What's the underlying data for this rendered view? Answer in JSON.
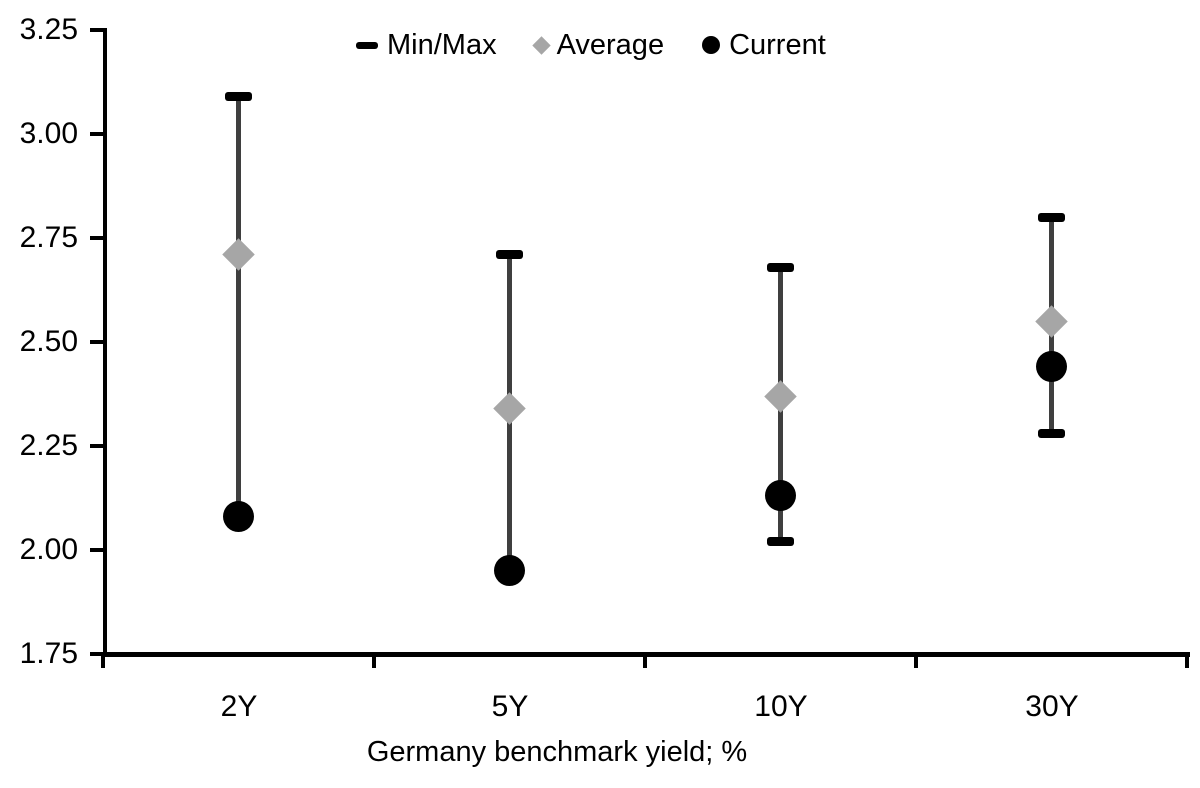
{
  "chart_data": {
    "type": "scatter",
    "subtype": "min-max-range-with-markers",
    "title": "",
    "xlabel": "Germany benchmark yield; %",
    "ylabel": "",
    "categories": [
      "2Y",
      "5Y",
      "10Y",
      "30Y"
    ],
    "series": [
      {
        "name": "Min/Max",
        "marker": "dash",
        "color": "#000000",
        "min": [
          2.08,
          1.95,
          2.02,
          2.28
        ],
        "max": [
          3.09,
          2.71,
          2.68,
          2.8
        ]
      },
      {
        "name": "Average",
        "marker": "diamond",
        "color": "#a6a6a6",
        "values": [
          2.71,
          2.34,
          2.37,
          2.55
        ]
      },
      {
        "name": "Current",
        "marker": "circle",
        "color": "#000000",
        "values": [
          2.08,
          1.95,
          2.13,
          2.44
        ]
      }
    ],
    "ylim": [
      1.75,
      3.25
    ],
    "ytick_step": 0.25,
    "ytick_labels": [
      "3.25",
      "3.00",
      "2.75",
      "2.50",
      "2.25",
      "2.00",
      "1.75"
    ],
    "grid": false,
    "legend_position": "top-center",
    "whisker_color": "#3f3f3f",
    "axis_color": "#000000",
    "text_color": "#000000",
    "background": "#ffffff"
  }
}
